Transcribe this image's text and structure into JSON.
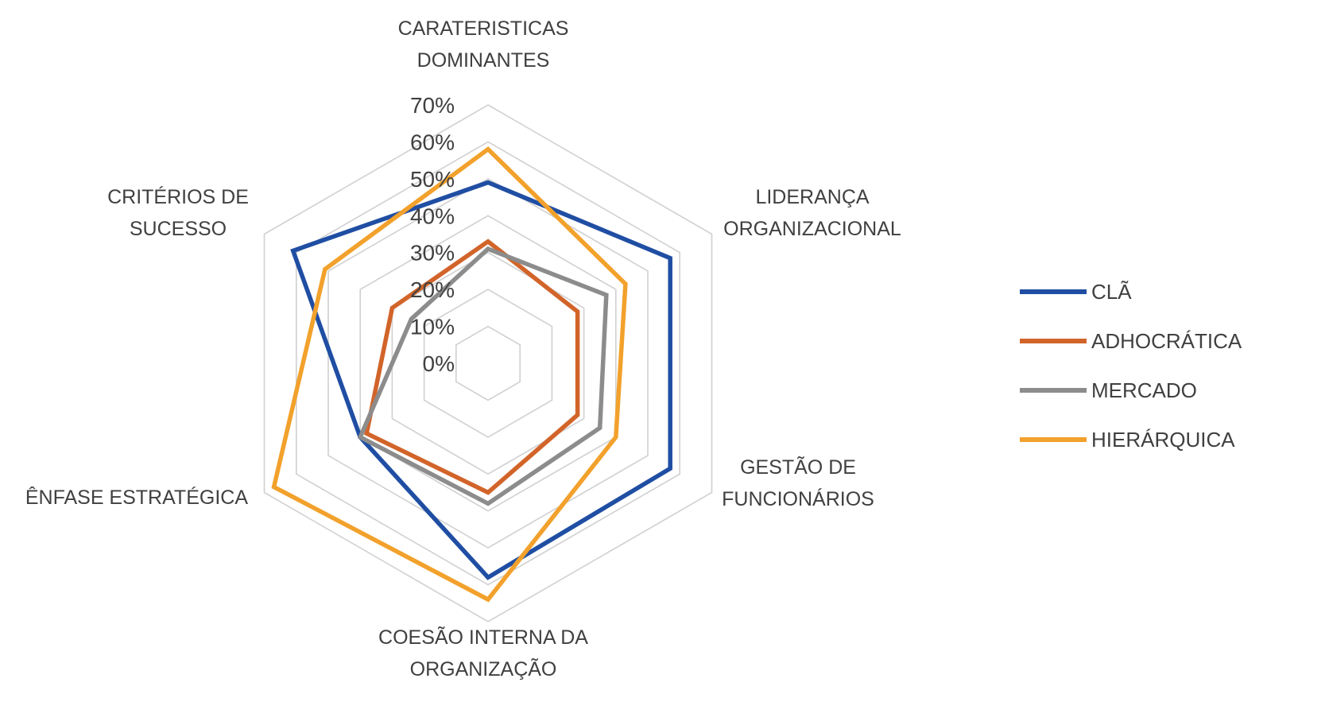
{
  "chart_data": {
    "type": "radar",
    "title": "",
    "categories": [
      [
        "CARATERISTICAS",
        "DOMINANTES"
      ],
      [
        "LIDERANÇA",
        "ORGANIZACIONAL"
      ],
      [
        "GESTÃO DE",
        "FUNCIONÁRIOS"
      ],
      [
        "COESÃO INTERNA DA",
        "ORGANIZAÇÃO"
      ],
      [
        "ÊNFASE ESTRATÉGICA"
      ],
      [
        "CRITÉRIOS DE",
        "SUCESSO"
      ]
    ],
    "r_ticks": [
      "0%",
      "10%",
      "20%",
      "30%",
      "40%",
      "50%",
      "60%",
      "70%"
    ],
    "r_range": [
      0,
      70
    ],
    "grid": true,
    "legend_position": "right",
    "series": [
      {
        "name": "CLÃ",
        "color": "#1f4ea3",
        "values": [
          49,
          57,
          57,
          58,
          40,
          61
        ]
      },
      {
        "name": "ADHOCRÁTICA",
        "color": "#d2642a",
        "values": [
          33,
          28,
          28,
          35,
          38,
          30
        ]
      },
      {
        "name": "MERCADO",
        "color": "#8c8c8c",
        "values": [
          31,
          37,
          35,
          38,
          40,
          24
        ]
      },
      {
        "name": "HIERÁRQUICA",
        "color": "#f2a12c",
        "values": [
          58,
          43,
          40,
          64,
          67,
          51
        ]
      }
    ]
  }
}
